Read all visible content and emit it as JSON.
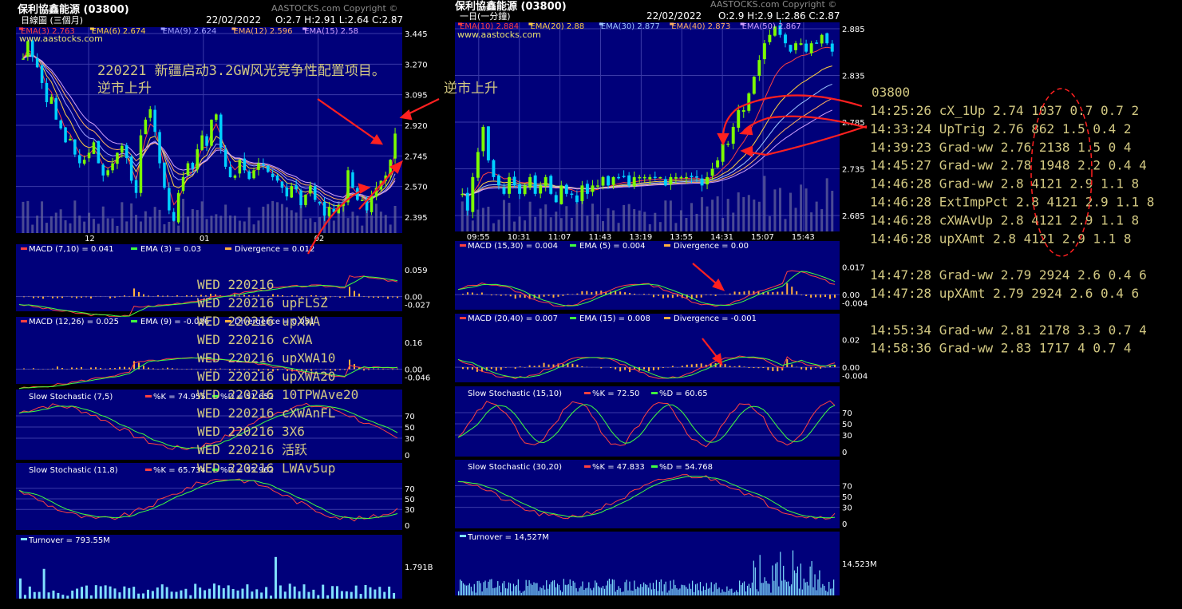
{
  "left_chart": {
    "stock_title": "保利協鑫能源 (03800)",
    "watermark": "AASTOCKS.com Copyright ©",
    "site": "www.aastocks.com",
    "period": "日線圖 (三個月)",
    "date": "22/02/2022",
    "ohlc": "O:2.7  H:2.91  L:2.64  C:2.87",
    "ema_labels": [
      "EMA(3) 2.763",
      "EMA(6) 2.674",
      "EMA(9) 2.624",
      "EMA(12) 2.596",
      "EMA(15) 2.58"
    ],
    "price_ticks": [
      "3.445",
      "3.270",
      "3.095",
      "2.920",
      "2.745",
      "2.570",
      "2.395"
    ],
    "x_ticks": [
      "12",
      "01",
      "02"
    ],
    "macd1": {
      "label": "MACD (7,10) = 0.041",
      "ema": "EMA (3) = 0.03",
      "div": "Divergence = 0.012",
      "ticks": [
        "0.059",
        "0.00",
        "-0.027"
      ]
    },
    "macd2": {
      "label": "MACD (12,26) = 0.025",
      "ema": "EMA (9) = -0.026",
      "div": "Divergence = 0.051",
      "ticks": [
        "0.16",
        "0.00",
        "-0.046"
      ]
    },
    "stoch1": {
      "label": "Slow Stochastic (7,5)",
      "k": "%K = 74.955",
      "d": "%D = 51.652",
      "ticks": [
        "70",
        "50",
        "30",
        "0"
      ]
    },
    "stoch2": {
      "label": "Slow Stochastic (11,8)",
      "k": "%K = 65.734",
      "d": "%D = 55.962",
      "ticks": [
        "70",
        "50",
        "30",
        "0"
      ]
    },
    "turnover": {
      "label": "Turnover = 793.55M",
      "tick": "1.791B"
    }
  },
  "right_chart": {
    "stock_title": "保利協鑫能源 (03800)",
    "watermark": "AASTOCKS.com Copyright ©",
    "site": "www.aastocks.com",
    "period": "一日(一分鐘)",
    "date": "22/02/2022",
    "ohlc": "O:2.9  H:2.9  L:2.86  C:2.87",
    "ema_labels": [
      "EMA(10) 2.884",
      "EMA(20) 2.88",
      "EMA(30) 2.877",
      "EMA(40) 2.873",
      "EMA(50) 2.867"
    ],
    "price_ticks": [
      "2.885",
      "2.835",
      "2.785",
      "2.735",
      "2.685"
    ],
    "x_ticks": [
      "09:55",
      "10:31",
      "11:07",
      "11:43",
      "13:19",
      "13:55",
      "14:31",
      "15:07",
      "15:43"
    ],
    "macd1": {
      "label": "MACD (15,30) = 0.004",
      "ema": "EMA (5) = 0.004",
      "div": "Divergence = 0.00",
      "ticks": [
        "0.017",
        "0.00",
        "-0.004"
      ]
    },
    "macd2": {
      "label": "MACD (20,40) = 0.007",
      "ema": "EMA (15) = 0.008",
      "div": "Divergence = -0.001",
      "ticks": [
        "0.02",
        "0.00",
        "-0.004"
      ]
    },
    "stoch1": {
      "label": "Slow Stochastic (15,10)",
      "k": "%K = 72.50",
      "d": "%D = 60.65",
      "ticks": [
        "70",
        "50",
        "30",
        "0"
      ]
    },
    "stoch2": {
      "label": "Slow Stochastic (30,20)",
      "k": "%K = 47.833",
      "d": "%D = 54.768",
      "ticks": [
        "70",
        "50",
        "30",
        "0"
      ]
    },
    "turnover": {
      "label": "Turnover = 14,527M",
      "tick": "14.523M"
    }
  },
  "annotations": {
    "news": "220221 新疆启动3.2GW风光竞争性配置项目。",
    "counter_trend": "逆市上升",
    "counter_trend_right": "逆市上升",
    "wed_signals": [
      "WED 220216",
      "WED 220216 upFLSZ",
      "WED 220216 upXWA",
      "WED 220216 cXWA",
      "WED 220216 upXWA10",
      "WED 220216 upXWA20",
      "WED 220216 10TPWAve20",
      "WED 220216 cXWAnFL",
      "WED 220216 3X6",
      "WED 220216 活跃",
      "WED 220216 LWAv5up"
    ],
    "code": "03800",
    "trade_log": [
      "14:25:26 cX_1Up 2.74 1037 0.7 0.7 2",
      "14:33:24 UpTrig 2.76 862 1.5 0.4 2",
      "14:39:23 Grad-ww 2.76 2138 1.5 0 4",
      "14:45:27 Grad-ww 2.78 1948 2.2 0.4 4",
      "14:46:28 Grad-ww 2.8 4121 2.9 1.1 8",
      "14:46:28 ExtImpPct 2.8 4121 2.9 1.1 8",
      "14:46:28 cXWAvUp 2.8 4121 2.9 1.1 8",
      "14:46:28 upXAmt 2.8 4121 2.9 1.1 8",
      "",
      "14:47:28 Grad-ww 2.79 2924 2.6 0.4 6",
      "14:47:28 upXAmt 2.79 2924 2.6 0.4 6",
      "",
      "14:55:34 Grad-ww 2.81 2178 3.3 0.7 4",
      "14:58:36 Grad-ww 2.83 1717 4 0.7 4"
    ]
  },
  "colors": {
    "panel": "#00007a",
    "grid": "#3a3aa8",
    "up": "#7cfc00",
    "down": "#00d0ff",
    "annotation": "#d2c882",
    "arrow": "#ff2020"
  },
  "chart_data": [
    {
      "type": "candlestick",
      "title": "保利協鑫能源 (03800) 日線圖 (三個月)",
      "x_ticks": [
        "12",
        "01",
        "02"
      ],
      "ylim": [
        2.3,
        3.48
      ],
      "close": [
        3.3,
        3.4,
        3.31,
        3.25,
        3.16,
        3.05,
        3.08,
        2.95,
        2.9,
        2.82,
        2.84,
        2.75,
        2.7,
        2.72,
        2.76,
        2.82,
        2.7,
        2.63,
        2.66,
        2.7,
        2.76,
        2.8,
        2.73,
        2.6,
        2.53,
        2.86,
        2.95,
        3.01,
        2.88,
        2.7,
        2.56,
        2.43,
        2.37,
        2.53,
        2.62,
        2.7,
        2.67,
        2.78,
        2.86,
        2.8,
        2.95,
        2.98,
        2.79,
        2.68,
        2.62,
        2.63,
        2.72,
        2.66,
        2.61,
        2.66,
        2.7,
        2.69,
        2.65,
        2.62,
        2.6,
        2.56,
        2.51,
        2.57,
        2.55,
        2.46,
        2.52,
        2.57,
        2.49,
        2.47,
        2.4,
        2.45,
        2.42,
        2.46,
        2.47,
        2.66,
        2.56,
        2.49,
        2.49,
        2.43,
        2.51,
        2.56,
        2.6,
        2.63,
        2.72,
        2.87
      ],
      "ema_periods": [
        3,
        6,
        9,
        12,
        15
      ]
    },
    {
      "type": "candlestick",
      "title": "保利協鑫能源 (03800) 一日(一分鐘)",
      "x_ticks": [
        "09:55",
        "10:31",
        "11:07",
        "11:43",
        "13:19",
        "13:55",
        "14:31",
        "15:07",
        "15:43"
      ],
      "ylim": [
        2.655,
        2.905
      ],
      "close": [
        2.7,
        2.68,
        2.72,
        2.75,
        2.78,
        2.74,
        2.72,
        2.71,
        2.7,
        2.72,
        2.71,
        2.7,
        2.71,
        2.72,
        2.7,
        2.71,
        2.72,
        2.7,
        2.69,
        2.71,
        2.7,
        2.7,
        2.69,
        2.71,
        2.7,
        2.71,
        2.71,
        2.72,
        2.71,
        2.72,
        2.72,
        2.72,
        2.71,
        2.72,
        2.72,
        2.72,
        2.72,
        2.72,
        2.72,
        2.71,
        2.72,
        2.72,
        2.72,
        2.72,
        2.72,
        2.72,
        2.71,
        2.72,
        2.73,
        2.74,
        2.76,
        2.76,
        2.78,
        2.8,
        2.8,
        2.82,
        2.84,
        2.86,
        2.88,
        2.89,
        2.9,
        2.89,
        2.88,
        2.87,
        2.88,
        2.88,
        2.87,
        2.88,
        2.88,
        2.89,
        2.88,
        2.87
      ],
      "ema_periods": [
        10,
        20,
        30,
        40,
        50
      ]
    }
  ]
}
